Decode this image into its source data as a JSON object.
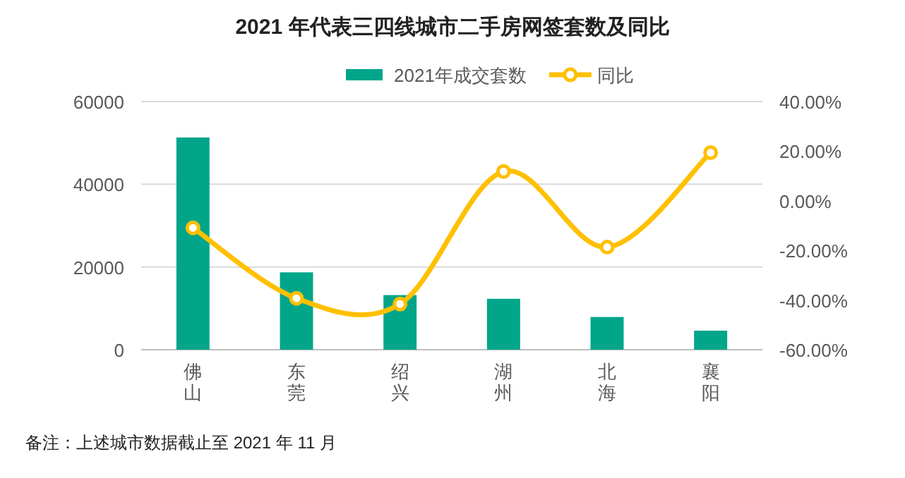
{
  "chart_data": {
    "type": "bar",
    "title": "2021 年代表三四线城市二手房网签套数及同比",
    "categories": [
      "佛山",
      "东莞",
      "绍兴",
      "湖州",
      "北海",
      "襄阳"
    ],
    "series": [
      {
        "name": "2021年成交套数",
        "color": "#00a58a",
        "values": [
          51300,
          18700,
          13200,
          12300,
          7900,
          4600
        ]
      },
      {
        "name": "同比",
        "type": "line",
        "axis": "y2",
        "color": "#ffc000",
        "marker": "circle",
        "values": [
          -10.9,
          -39.3,
          -41.6,
          11.8,
          -18.7,
          19.4
        ]
      }
    ],
    "ylim": [
      0,
      60000
    ],
    "yticks": [
      0,
      20000,
      40000,
      60000
    ],
    "y2lim": [
      -60,
      40
    ],
    "y2ticks": [
      {
        "value": -60,
        "label": "-60.00%"
      },
      {
        "value": -40,
        "label": "-40.00%"
      },
      {
        "value": -20,
        "label": "-20.00%"
      },
      {
        "value": 0,
        "label": "0.00%"
      },
      {
        "value": 20,
        "label": "20.00%"
      },
      {
        "value": 40,
        "label": "40.00%"
      }
    ],
    "grid": "y",
    "legend": "top",
    "annotations": [
      "备注：上述城市数据截止至 2021 年 11 月"
    ]
  }
}
